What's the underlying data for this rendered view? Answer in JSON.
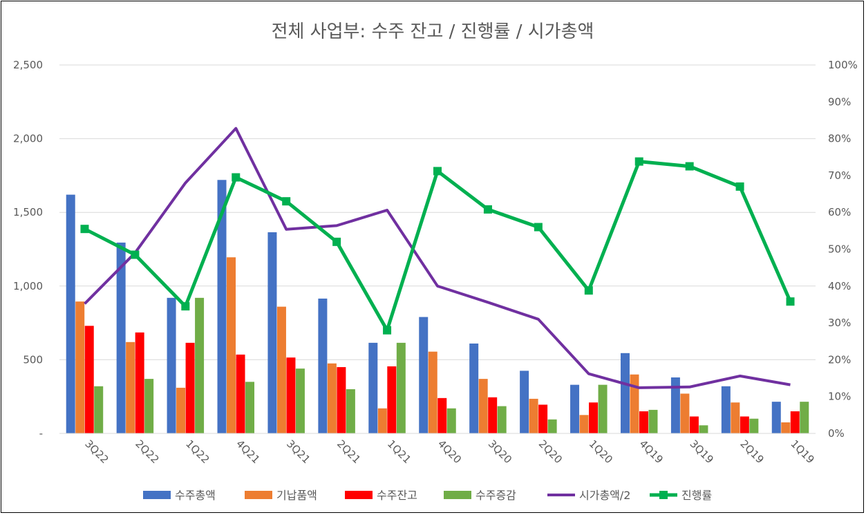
{
  "chart_data": {
    "type": "bar",
    "title": "전체 사업부: 수주 잔고 / 진행률 / 시가총액",
    "categories": [
      "3Q22",
      "2Q22",
      "1Q22",
      "4Q21",
      "3Q21",
      "2Q21",
      "1Q21",
      "4Q20",
      "3Q20",
      "2Q20",
      "1Q20",
      "4Q19",
      "3Q19",
      "2Q19",
      "1Q19"
    ],
    "left_axis": {
      "min": 0,
      "max": 2500,
      "ticks": [
        0,
        500,
        1000,
        1500,
        2000,
        2500
      ],
      "tick_labels": [
        "-",
        "500",
        "1,000",
        "1,500",
        "2,000",
        "2,500"
      ]
    },
    "right_axis": {
      "min": 0,
      "max": 100,
      "ticks": [
        0,
        10,
        20,
        30,
        40,
        50,
        60,
        70,
        80,
        90,
        100
      ],
      "tick_labels": [
        "0%",
        "10%",
        "20%",
        "30%",
        "40%",
        "50%",
        "60%",
        "70%",
        "80%",
        "90%",
        "100%"
      ]
    },
    "series": [
      {
        "name": "수주총액",
        "type": "bar",
        "axis": "left",
        "color": "#4472c4",
        "values": [
          1620,
          1295,
          920,
          1720,
          1365,
          915,
          615,
          790,
          610,
          425,
          330,
          545,
          380,
          320,
          215
        ]
      },
      {
        "name": "기납품액",
        "type": "bar",
        "axis": "left",
        "color": "#ed7d31",
        "values": [
          895,
          620,
          310,
          1195,
          860,
          475,
          170,
          555,
          370,
          235,
          125,
          400,
          270,
          210,
          75
        ]
      },
      {
        "name": "수주잔고",
        "type": "bar",
        "axis": "left",
        "color": "#ff0000",
        "values": [
          730,
          685,
          615,
          535,
          515,
          450,
          455,
          240,
          245,
          195,
          210,
          150,
          115,
          115,
          150
        ]
      },
      {
        "name": "수주증감",
        "type": "bar",
        "axis": "left",
        "color": "#70ad47",
        "values": [
          320,
          370,
          920,
          350,
          440,
          300,
          615,
          170,
          185,
          95,
          330,
          160,
          55,
          100,
          215
        ]
      },
      {
        "name": "시가총액/2",
        "type": "line",
        "axis": "left",
        "color": "#7030a0",
        "values": [
          880,
          1225,
          1700,
          2070,
          1385,
          1410,
          1515,
          1000,
          890,
          775,
          405,
          310,
          315,
          390,
          330
        ]
      },
      {
        "name": "진행률",
        "type": "line",
        "axis": "right",
        "color": "#00b050",
        "marker": "square",
        "values": [
          55.5,
          48.5,
          34.5,
          69.5,
          63.0,
          52.0,
          28.0,
          71.2,
          60.8,
          56.0,
          38.8,
          73.8,
          72.5,
          67.0,
          35.8
        ]
      }
    ],
    "legend_position": "bottom",
    "grid": true
  }
}
